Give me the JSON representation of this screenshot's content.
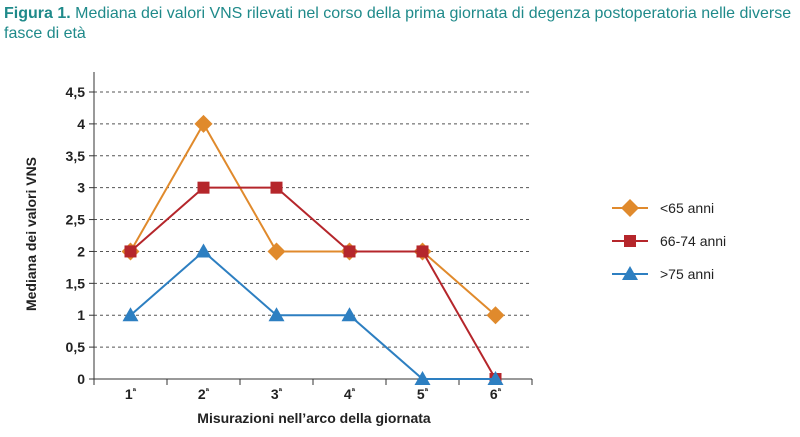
{
  "caption": {
    "figure_label": "Figura 1.",
    "text": "Mediana dei valori VNS rilevati nel corso della prima giornata di degenza postoperatoria nelle diverse fasce di età"
  },
  "chart_data": {
    "type": "line",
    "title": "",
    "xlabel": "Misurazioni nell’arco della giornata",
    "ylabel": "Mediana dei valori VNS",
    "categories": [
      "1ª",
      "2ª",
      "3ª",
      "4ª",
      "5ª",
      "6ª"
    ],
    "ylim": [
      0,
      4.5
    ],
    "yticks": [
      "0",
      "0,5",
      "1",
      "1,5",
      "2",
      "2,5",
      "3",
      "3,5",
      "4",
      "4,5"
    ],
    "grid": "horizontal dashed",
    "legend_position": "right",
    "series": [
      {
        "name": "<65 anni",
        "values": [
          2,
          4,
          2,
          2,
          2,
          1
        ],
        "color": "#e08a2c",
        "marker": "diamond-icon"
      },
      {
        "name": "66-74 anni",
        "values": [
          2,
          3,
          3,
          2,
          2,
          0
        ],
        "color": "#b5262b",
        "marker": "square-icon"
      },
      {
        "name": ">75 anni",
        "values": [
          1,
          2,
          1,
          1,
          0,
          0
        ],
        "color": "#2d7fc1",
        "marker": "triangle-icon"
      }
    ]
  }
}
